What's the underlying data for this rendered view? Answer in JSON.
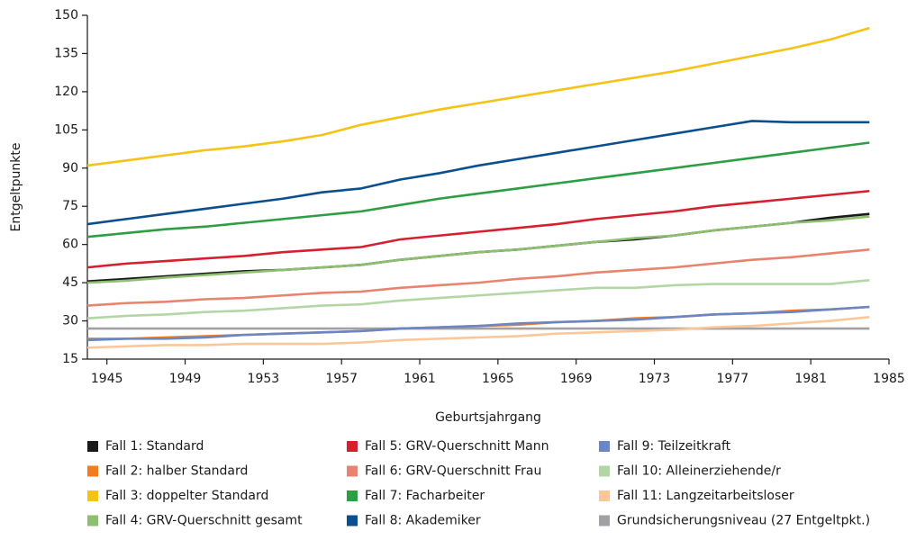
{
  "chart_data": {
    "type": "line",
    "y_label": "Entgeltpunkte",
    "x_label": "Geburtsjahrgang",
    "x": [
      1944,
      1946,
      1948,
      1950,
      1952,
      1954,
      1956,
      1958,
      1960,
      1962,
      1964,
      1966,
      1968,
      1970,
      1972,
      1974,
      1976,
      1978,
      1980,
      1982,
      1984
    ],
    "xlim": [
      1944,
      1985
    ],
    "xticks": [
      1945,
      1949,
      1953,
      1957,
      1961,
      1965,
      1969,
      1973,
      1977,
      1981,
      1985
    ],
    "ylim": [
      15,
      150
    ],
    "yticks": [
      15,
      30,
      45,
      60,
      75,
      90,
      105,
      120,
      135,
      150
    ],
    "grid": false,
    "series": [
      {
        "name": "Fall 1: Standard",
        "color": "#1a1a1a",
        "values": [
          45.5,
          46.5,
          47.5,
          48.5,
          49.5,
          50,
          51,
          52,
          54,
          55.5,
          57,
          58,
          59.5,
          61,
          62,
          63.5,
          65.5,
          67,
          68.5,
          70.5,
          72
        ]
      },
      {
        "name": "Fall 2: halber Standard",
        "color": "#f07d22",
        "values": [
          23,
          23,
          23.5,
          24,
          24.5,
          25,
          25.5,
          26,
          27,
          27.5,
          28,
          28.5,
          29.5,
          30,
          31,
          31.5,
          32.5,
          33,
          34,
          34.5,
          35.5
        ]
      },
      {
        "name": "Fall 3: doppelter Standard",
        "color": "#f5c316",
        "values": [
          91,
          93,
          95,
          97,
          98.5,
          100.5,
          103,
          107,
          110,
          113,
          115.5,
          118,
          120.5,
          123,
          125.5,
          128,
          131,
          134,
          137,
          140.5,
          145
        ]
      },
      {
        "name": "Fall 4: GRV-Querschnitt gesamt",
        "color": "#8cbf6f",
        "values": [
          45,
          45.8,
          47,
          48,
          49,
          50,
          51,
          52,
          54,
          55.5,
          57,
          58,
          59.5,
          61,
          62.5,
          63.5,
          65.5,
          67,
          68.5,
          69.5,
          71
        ]
      },
      {
        "name": "Fall 5: GRV-Querschnitt Mann",
        "color": "#d62030",
        "values": [
          51,
          52.5,
          53.5,
          54.5,
          55.5,
          57,
          58,
          59,
          62,
          63.5,
          65,
          66.5,
          68,
          70,
          71.5,
          73,
          75,
          76.5,
          78,
          79.5,
          81
        ]
      },
      {
        "name": "Fall 6: GRV-Querschnitt Frau",
        "color": "#e8846d",
        "values": [
          36,
          37,
          37.5,
          38.5,
          39,
          40,
          41,
          41.5,
          43,
          44,
          45,
          46.5,
          47.5,
          49,
          50,
          51,
          52.5,
          54,
          55,
          56.5,
          58
        ]
      },
      {
        "name": "Fall 7: Facharbeiter",
        "color": "#2e9e44",
        "values": [
          63,
          64.5,
          66,
          67,
          68.5,
          70,
          71.5,
          73,
          75.5,
          78,
          80,
          82,
          84,
          86,
          88,
          90,
          92,
          94,
          96,
          98,
          100
        ]
      },
      {
        "name": "Fall 8: Akademiker",
        "color": "#0b4f8f",
        "values": [
          68,
          70,
          72,
          74,
          76,
          78,
          80.5,
          82,
          85.5,
          88,
          91,
          93.5,
          96,
          98.5,
          101,
          103.5,
          106,
          108.5,
          108,
          108,
          108
        ]
      },
      {
        "name": "Fall 9: Teilzeitkraft",
        "color": "#6a86c6",
        "values": [
          22.5,
          23,
          23,
          23.5,
          24.5,
          25,
          25.5,
          26,
          27,
          27.5,
          28,
          29,
          29.5,
          30,
          30.5,
          31.5,
          32.5,
          33,
          33.5,
          34.5,
          35.5
        ]
      },
      {
        "name": "Fall 10: Alleinerziehende/r",
        "color": "#b3d6a5",
        "values": [
          31,
          32,
          32.5,
          33.5,
          34,
          35,
          36,
          36.5,
          38,
          39,
          40,
          41,
          42,
          43,
          43,
          44,
          44.5,
          44.5,
          44.5,
          44.5,
          46
        ]
      },
      {
        "name": "Fall 11: Langzeitarbeitsloser",
        "color": "#fbc79a",
        "values": [
          19.5,
          20,
          20.5,
          20.5,
          21,
          21,
          21,
          21.5,
          22.5,
          23,
          23.5,
          24,
          25,
          25.5,
          26,
          26.5,
          27.5,
          28,
          29,
          30,
          31.5
        ]
      },
      {
        "name": "Grundsicherungsniveau (27 Entgeltpkt.)",
        "color": "#a0a0a5",
        "values": [
          27,
          27,
          27,
          27,
          27,
          27,
          27,
          27,
          27,
          27,
          27,
          27,
          27,
          27,
          27,
          27,
          27,
          27,
          27,
          27,
          27
        ]
      }
    ]
  }
}
